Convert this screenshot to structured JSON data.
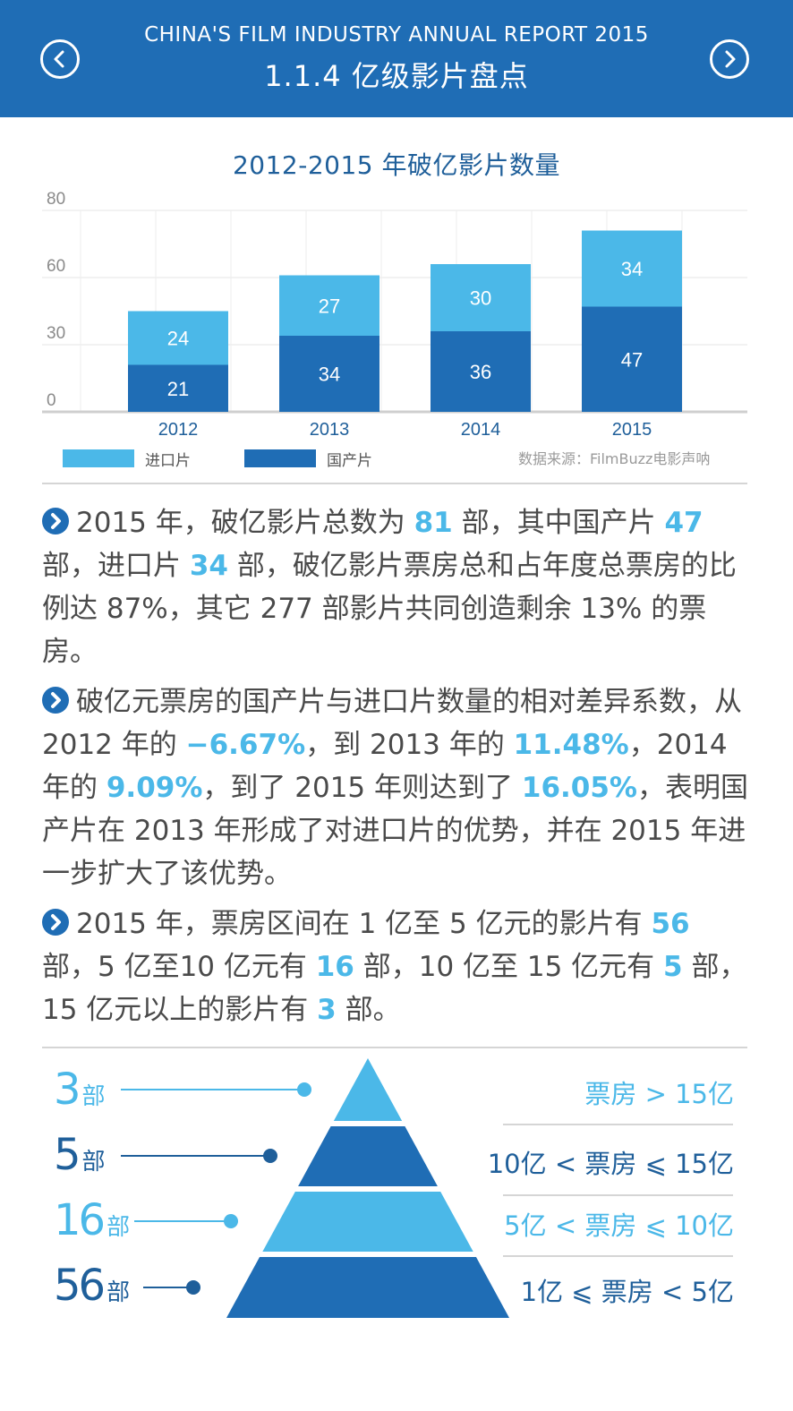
{
  "header": {
    "subtitle": "CHINA'S FILM INDUSTRY ANNUAL REPORT 2015",
    "title": "1.1.4  亿级影片盘点",
    "prev_icon": "chevron-left-icon",
    "next_icon": "chevron-right-icon"
  },
  "colors": {
    "header_bg": "#1f6db5",
    "dark_blue": "#1f6db5",
    "light_blue": "#4bb8e8"
  },
  "chart_data": {
    "type": "bar",
    "stacked": true,
    "title": "2012-2015 年破亿影片数量",
    "categories": [
      "2012",
      "2013",
      "2014",
      "2015"
    ],
    "y_ticks": [
      "0",
      "30",
      "60",
      "80"
    ],
    "series": [
      {
        "name": "国产片",
        "values": [
          21,
          34,
          36,
          47
        ],
        "color": "#1f6db5"
      },
      {
        "name": "进口片",
        "values": [
          24,
          27,
          30,
          34
        ],
        "color": "#4bb8e8"
      }
    ],
    "legend": [
      {
        "label": "进口片",
        "color": "#4bb8e8"
      },
      {
        "label": "国产片",
        "color": "#1f6db5"
      }
    ],
    "legend_position": "bottom",
    "grid": true,
    "source": "数据来源：FilmBuzz电影声呐"
  },
  "paragraphs": [
    [
      {
        "t": "2015 年，破亿影片总数为 "
      },
      {
        "t": "81",
        "hl": "l"
      },
      {
        "t": " 部，其中国产片 "
      },
      {
        "t": "47",
        "hl": "l"
      },
      {
        "t": " 部，进口片  "
      },
      {
        "t": "34",
        "hl": "l"
      },
      {
        "t": "  部，破亿影片票房总和占年度总票房的比例达 87%，其它 277 部影片共同创造剩余 13% 的票房。"
      }
    ],
    [
      {
        "t": "破亿元票房的国产片与进口片数量的相对差异系数，从2012 年的 "
      },
      {
        "t": "−6.67%",
        "hl": "l"
      },
      {
        "t": "，到 2013 年的 "
      },
      {
        "t": "11.48%",
        "hl": "l"
      },
      {
        "t": "，2014 年的 "
      },
      {
        "t": "9.09%",
        "hl": "l"
      },
      {
        "t": "，到了 2015 年则达到了 "
      },
      {
        "t": "16.05%",
        "hl": "l"
      },
      {
        "t": "，表明国产片在  2013  年形成了对进口片的优势，并在 2015 年进一步扩大了该优势。"
      }
    ],
    [
      {
        "t": "2015 年，票房区间在 1 亿至 5 亿元的影片有 "
      },
      {
        "t": "56",
        "hl": "l"
      },
      {
        "t": " 部，5 亿至10 亿元有 "
      },
      {
        "t": "16",
        "hl": "l"
      },
      {
        "t": " 部，10 亿至 15 亿元有 "
      },
      {
        "t": "5",
        "hl": "l"
      },
      {
        "t": " 部，15 亿元以上的影片有 "
      },
      {
        "t": "3",
        "hl": "l"
      },
      {
        "t": " 部。"
      }
    ]
  ],
  "pyramid": [
    {
      "count": "3",
      "unit": "部",
      "range": "票房 > 15亿",
      "color": "#4bb8e8"
    },
    {
      "count": "5",
      "unit": "部",
      "range": "10亿 < 票房 ⩽ 15亿",
      "color": "#1f6db5"
    },
    {
      "count": "16",
      "unit": "部",
      "range": "5亿 < 票房 ⩽ 10亿",
      "color": "#4bb8e8"
    },
    {
      "count": "56",
      "unit": "部",
      "range": "1亿 ⩽ 票房 < 5亿",
      "color": "#1f6db5"
    }
  ]
}
